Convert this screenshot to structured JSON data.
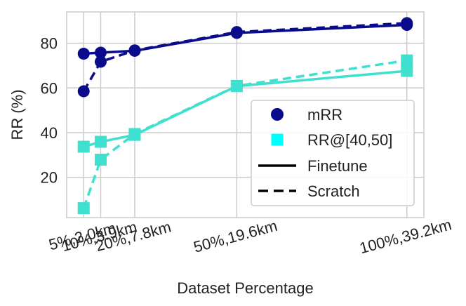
{
  "chart_data": {
    "type": "line",
    "title": "",
    "xlabel": "Dataset Percentage",
    "ylabel": "RR (%)",
    "categories": [
      "5%,2.0km",
      "10%,3.9km",
      "20%,7.8km",
      "50%,19.6km",
      "100%,39.2km"
    ],
    "x_positions": [
      5,
      10,
      20,
      50,
      100
    ],
    "xlim": [
      0,
      105
    ],
    "ylim": [
      2,
      94
    ],
    "yticks": [
      20,
      40,
      60,
      80
    ],
    "grid": true,
    "legend_position": "center-right",
    "legend": {
      "entries": [
        {
          "label": "mRR",
          "marker": "circle",
          "color": "#0a0a8c"
        },
        {
          "label": "RR@[40,50]",
          "marker": "square",
          "color": "#00ffff"
        },
        {
          "label": "Finetune",
          "line": "solid",
          "color": "#000000"
        },
        {
          "label": "Scratch",
          "line": "dashed",
          "color": "#000000"
        }
      ]
    },
    "series": [
      {
        "metric": "mRR",
        "mode": "Finetune",
        "color": "#0a0a8c",
        "marker": "circle",
        "line": "solid",
        "values": [
          75.3,
          75.8,
          76.6,
          84.6,
          88.2
        ]
      },
      {
        "metric": "mRR",
        "mode": "Scratch",
        "color": "#0a0a8c",
        "marker": "circle",
        "line": "dashed",
        "values": [
          58.5,
          71.7,
          76.8,
          85.0,
          89.0
        ]
      },
      {
        "metric": "RR@[40,50]",
        "mode": "Finetune",
        "color": "#40e0d0",
        "marker": "square",
        "line": "solid",
        "values": [
          33.7,
          35.9,
          39.0,
          60.8,
          67.6
        ]
      },
      {
        "metric": "RR@[40,50]",
        "mode": "Scratch",
        "color": "#40e0d0",
        "marker": "square",
        "line": "dashed",
        "values": [
          6.2,
          27.9,
          39.4,
          60.9,
          72.3
        ]
      }
    ]
  }
}
